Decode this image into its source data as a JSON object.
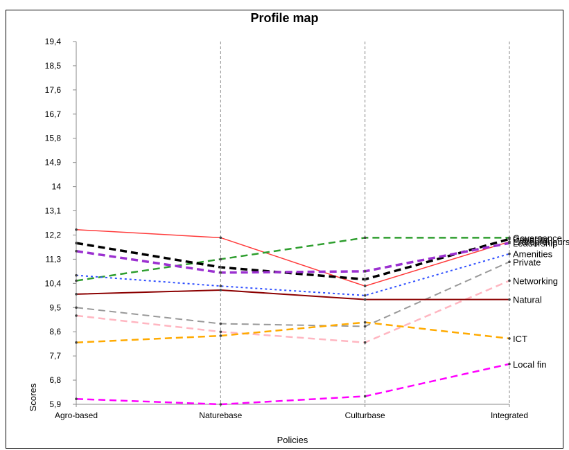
{
  "chart_data": {
    "type": "line",
    "title": "Profile map",
    "xlabel": "Policies",
    "ylabel": "Scores",
    "categories": [
      "Agro-based",
      "Naturebase",
      "Culturbase",
      "Integrated"
    ],
    "y_ticks": [
      "19,4",
      "18,5",
      "17,6",
      "16,7",
      "15,8",
      "14,9",
      "14",
      "13,1",
      "12,2",
      "11,3",
      "10,4",
      "9,5",
      "8,6",
      "7,7",
      "6,8",
      "5,9"
    ],
    "ylim": [
      5.9,
      19.4
    ],
    "grid": "vertical dashed",
    "series": [
      {
        "name": "Entrepreneurship",
        "values": [
          12.4,
          12.1,
          10.3,
          11.95
        ],
        "color": "#ff3b3b",
        "dash": "solid",
        "width": 1.5
      },
      {
        "name": "Governance",
        "values": [
          10.5,
          11.3,
          12.1,
          12.1
        ],
        "color": "#2e9e2e",
        "dash": "dashed",
        "width": 2.5
      },
      {
        "name": "Capacity",
        "values": [
          11.9,
          11.0,
          10.55,
          12.05
        ],
        "color": "#000000",
        "dash": "dashed",
        "width": 3.5
      },
      {
        "name": "Leadership",
        "values": [
          11.6,
          10.8,
          10.85,
          11.9
        ],
        "color": "#9b30d0",
        "dash": "dashed",
        "width": 3.5
      },
      {
        "name": "Amenities",
        "values": [
          10.7,
          10.3,
          9.95,
          11.5
        ],
        "color": "#3050ff",
        "dash": "dotted",
        "width": 2
      },
      {
        "name": "Private",
        "values": [
          9.5,
          8.9,
          8.8,
          11.2
        ],
        "color": "#999999",
        "dash": "dashed",
        "width": 2
      },
      {
        "name": "Networking",
        "values": [
          9.2,
          8.6,
          8.2,
          10.5
        ],
        "color": "#ffb6c1",
        "dash": "dashed",
        "width": 2.5
      },
      {
        "name": "Natural",
        "values": [
          10.0,
          10.15,
          9.8,
          9.8
        ],
        "color": "#8b0000",
        "dash": "solid",
        "width": 2
      },
      {
        "name": "ICT",
        "values": [
          8.2,
          8.45,
          8.95,
          8.35
        ],
        "color": "#ffaa00",
        "dash": "dashed",
        "width": 2.5
      },
      {
        "name": "Local fin",
        "values": [
          6.1,
          5.9,
          6.2,
          7.4
        ],
        "color": "#ff00ff",
        "dash": "dashed",
        "width": 2.5
      }
    ]
  }
}
